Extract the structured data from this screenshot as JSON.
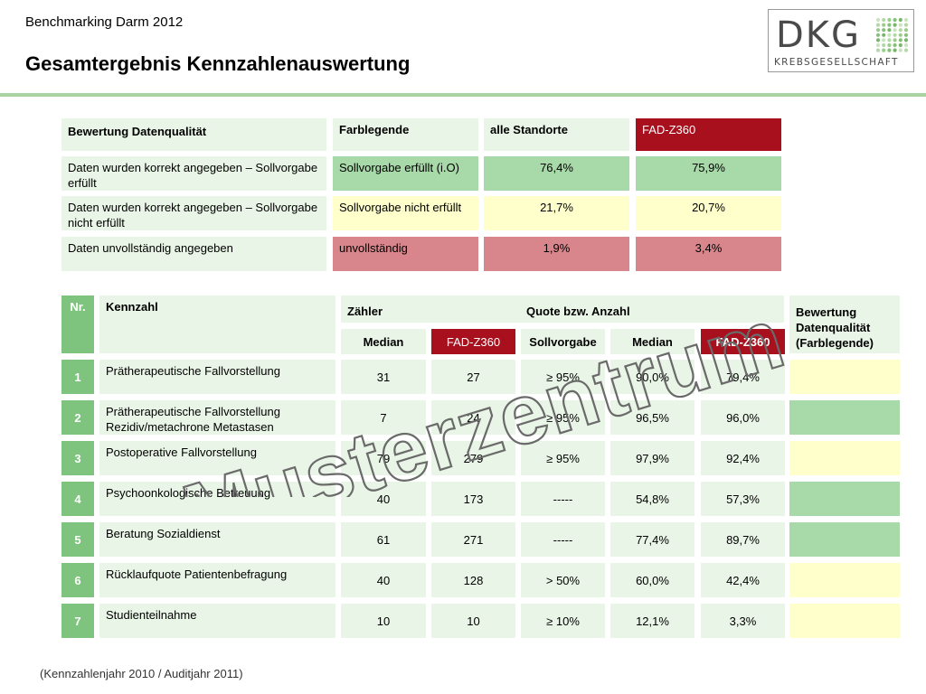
{
  "header": {
    "subtitle": "Benchmarking Darm 2012",
    "title": "Gesamtergebnis Kennzahlenauswertung"
  },
  "logo": {
    "main": "DKG",
    "sub": "KREBSGESELLSCHAFT"
  },
  "legend": {
    "headers": [
      "Bewertung Datenqualität",
      "Farblegende",
      "alle Standorte",
      "FAD-Z360"
    ],
    "rows": [
      {
        "desc": "Daten wurden korrekt angegeben – Sollvorgabe erfüllt",
        "legend": "Sollvorgabe erfüllt (i.O)",
        "all": "76,4%",
        "fad": "75,9%",
        "color": "#a8d9a8"
      },
      {
        "desc": "Daten wurden korrekt angegeben – Sollvorgabe nicht erfüllt",
        "legend": "Sollvorgabe nicht erfüllt",
        "all": "21,7%",
        "fad": "20,7%",
        "color": "#ffffcc"
      },
      {
        "desc": "Daten unvollständig angegeben",
        "legend": "unvollständig",
        "all": "1,9%",
        "fad": "3,4%",
        "color": "#d8858b"
      }
    ]
  },
  "main": {
    "header": {
      "nr": "Nr.",
      "kennzahl": "Kennzahl",
      "zaehler": "Zähler",
      "quote": "Quote bzw. Anzahl",
      "median1": "Median",
      "fad1": "FAD-Z360",
      "sollvorgabe": "Sollvorgabe",
      "median2": "Median",
      "fad2": "FAD-Z360",
      "bewertung": "Bewertung Datenqualität (Farblegende)"
    },
    "rows": [
      {
        "nr": "1",
        "name": "Prätherapeutische Fallvorstellung",
        "median": "31",
        "fad": "27",
        "soll": "≥ 95%",
        "qmedian": "90,0%",
        "qfad": "79,4%",
        "rating": "#ffffcc"
      },
      {
        "nr": "2",
        "name": "Prätherapeutische Fallvorstellung Rezidiv/metachrone Metastasen",
        "median": "7",
        "fad": "24",
        "soll": "≥ 95%",
        "qmedian": "96,5%",
        "qfad": "96,0%",
        "rating": "#a8d9a8"
      },
      {
        "nr": "3",
        "name": "Postoperative Fallvorstellung",
        "median": "79",
        "fad": "279",
        "soll": "≥ 95%",
        "qmedian": "97,9%",
        "qfad": "92,4%",
        "rating": "#ffffcc"
      },
      {
        "nr": "4",
        "name": "Psychoonkologische Betreuung",
        "median": "40",
        "fad": "173",
        "soll": "-----",
        "qmedian": "54,8%",
        "qfad": "57,3%",
        "rating": "#a8d9a8"
      },
      {
        "nr": "5",
        "name": "Beratung Sozialdienst",
        "median": "61",
        "fad": "271",
        "soll": "-----",
        "qmedian": "77,4%",
        "qfad": "89,7%",
        "rating": "#a8d9a8"
      },
      {
        "nr": "6",
        "name": "Rücklaufquote Patientenbefragung",
        "median": "40",
        "fad": "128",
        "soll": "> 50%",
        "qmedian": "60,0%",
        "qfad": "42,4%",
        "rating": "#ffffcc"
      },
      {
        "nr": "7",
        "name": "Studienteilnahme",
        "median": "10",
        "fad": "10",
        "soll": "≥ 10%",
        "qmedian": "12,1%",
        "qfad": "3,3%",
        "rating": "#ffffcc"
      }
    ]
  },
  "footer": "(Kennzahlenjahr 2010 / Auditjahr 2011)",
  "watermark": "Musterzentrum"
}
